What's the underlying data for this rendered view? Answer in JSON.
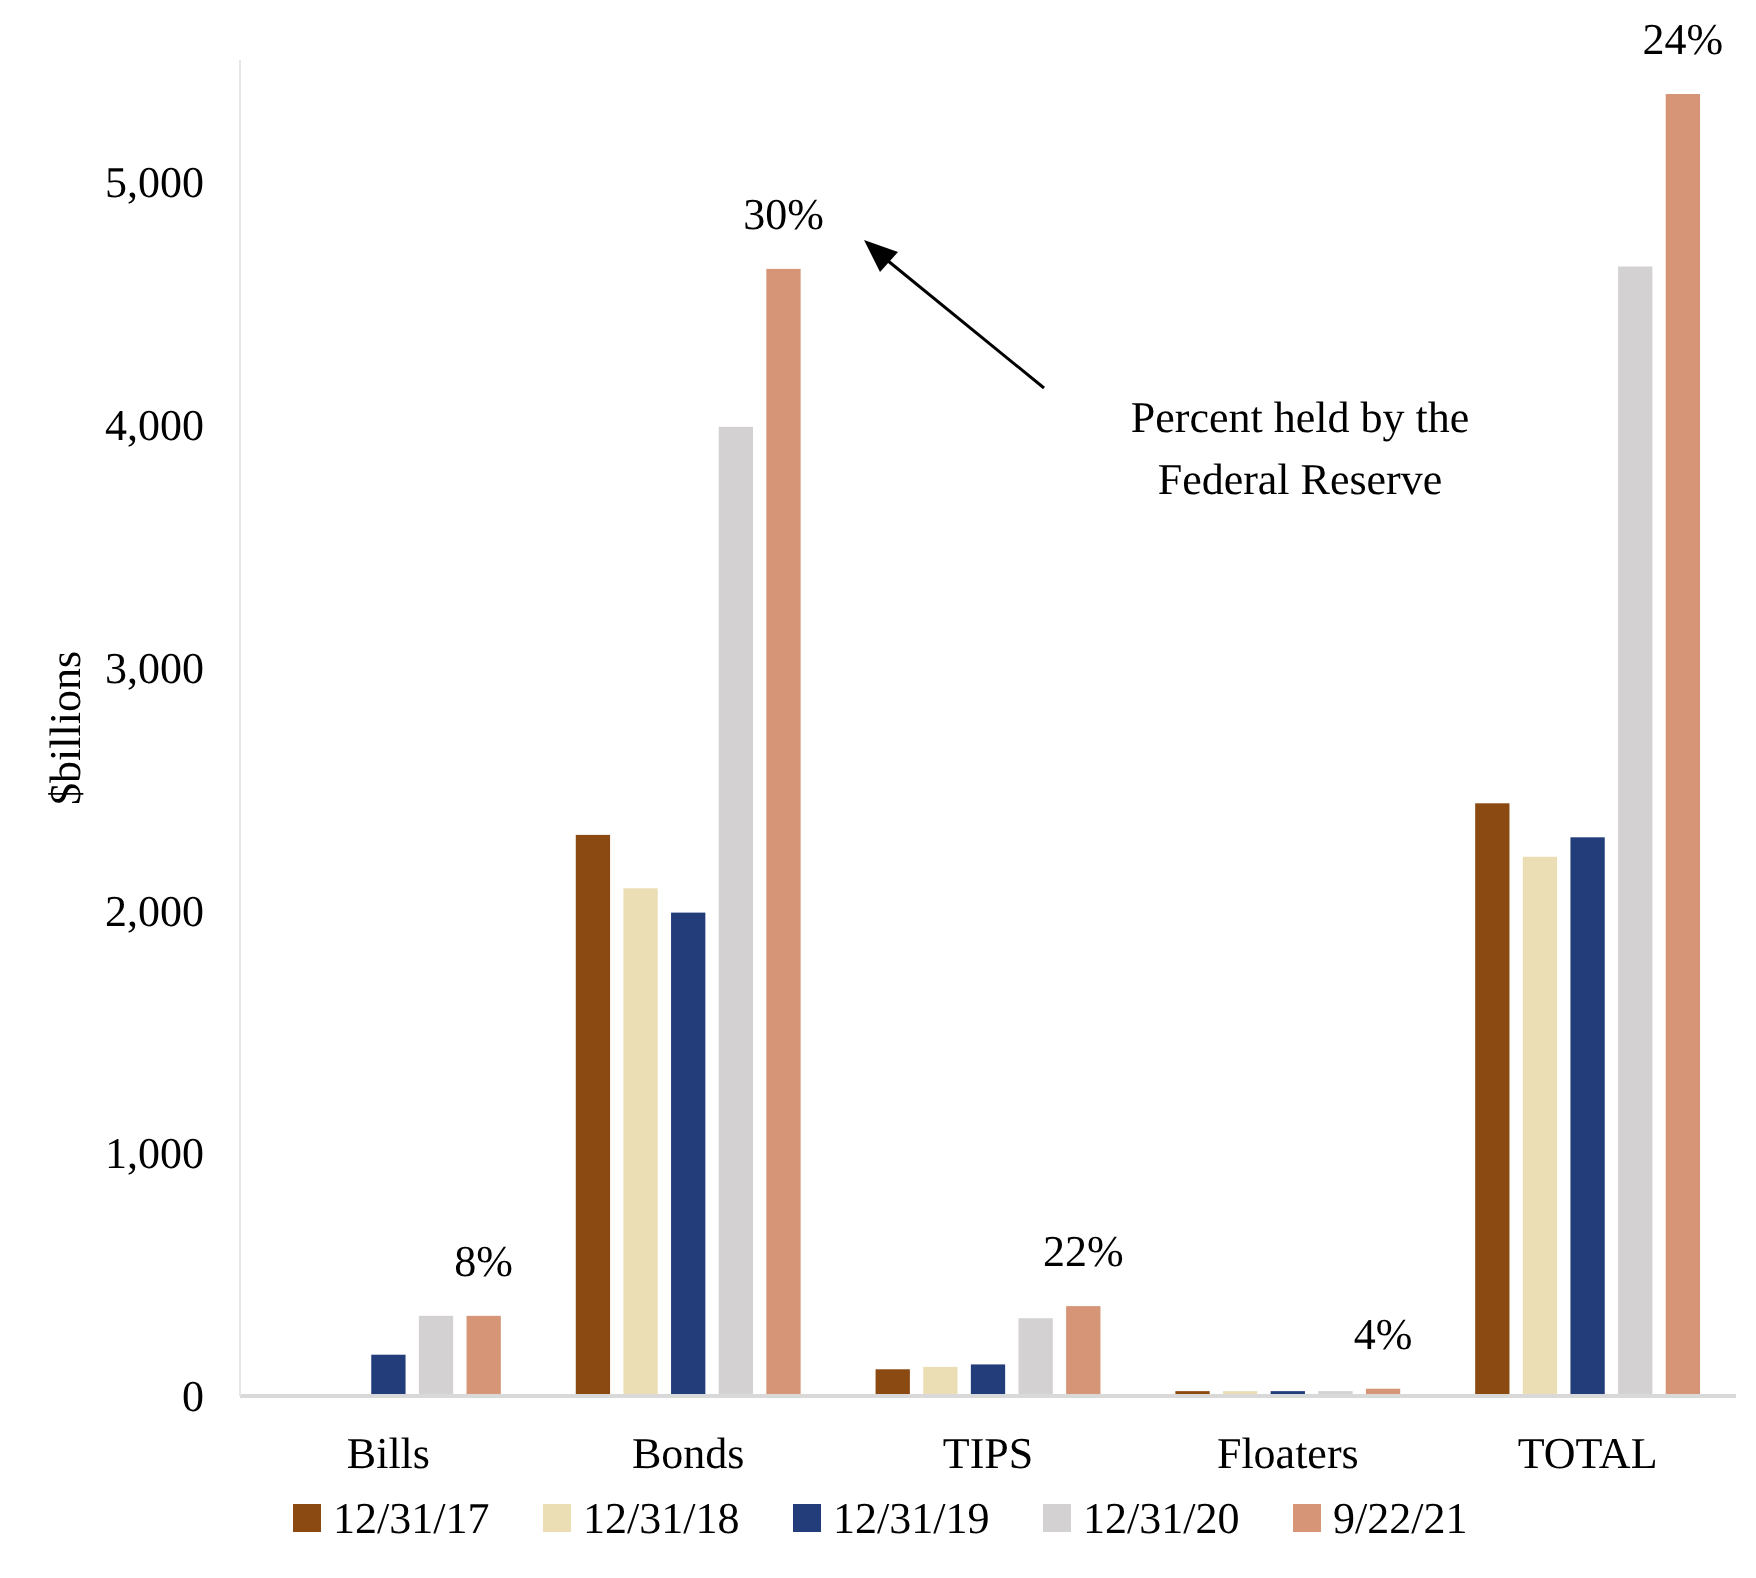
{
  "chart_data": {
    "type": "bar",
    "ylabel": "$billions",
    "categories": [
      "Bills",
      "Bonds",
      "TIPS",
      "Floaters",
      "TOTAL"
    ],
    "series": [
      {
        "name": "12/31/17",
        "color": "#8b4a12",
        "values": [
          0,
          2310,
          110,
          20,
          2440
        ]
      },
      {
        "name": "12/31/18",
        "color": "#ebdeb5",
        "values": [
          0,
          2090,
          120,
          20,
          2220
        ]
      },
      {
        "name": "12/31/19",
        "color": "#233c7a",
        "values": [
          170,
          1990,
          130,
          20,
          2300
        ]
      },
      {
        "name": "12/31/20",
        "color": "#d3d1d2",
        "values": [
          330,
          3990,
          320,
          20,
          4650
        ]
      },
      {
        "name": "9/22/21",
        "color": "#d69576",
        "values": [
          330,
          4640,
          370,
          30,
          5360
        ]
      }
    ],
    "ylim": [
      0,
      5500
    ],
    "yticks": [
      {
        "value": 0,
        "label": "0"
      },
      {
        "value": 1000,
        "label": "1,000"
      },
      {
        "value": 2000,
        "label": "2,000"
      },
      {
        "value": 3000,
        "label": "3,000"
      },
      {
        "value": 4000,
        "label": "4,000"
      },
      {
        "value": 5000,
        "label": "5,000"
      }
    ],
    "legend": "bottom",
    "grid": false,
    "annotations": [
      "8%",
      "30%",
      "22%",
      "4%",
      "24%",
      "Percent held by the Federal Reserve"
    ]
  }
}
